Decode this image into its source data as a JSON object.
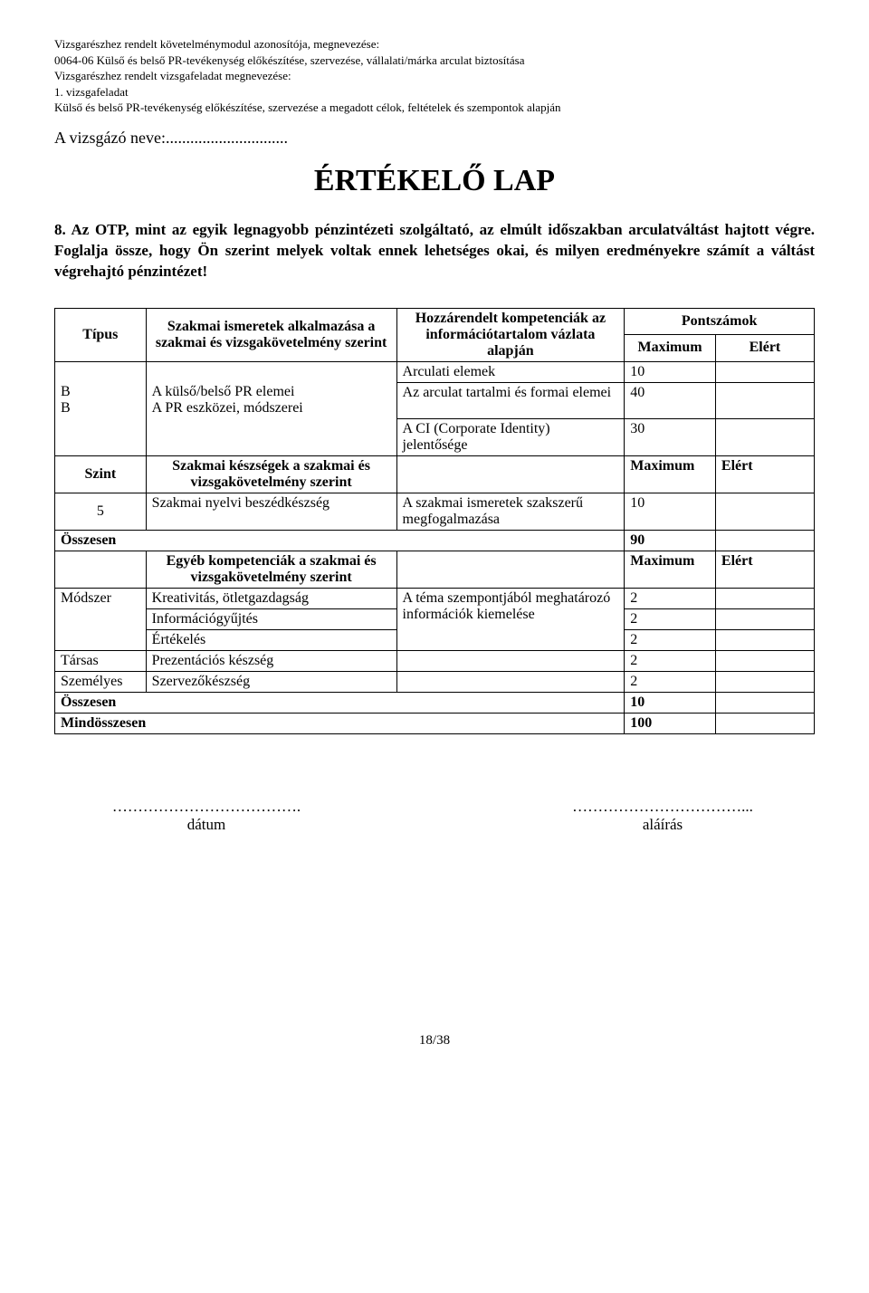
{
  "header": {
    "l1": "Vizsgarészhez rendelt követelménymodul azonosítója, megnevezése:",
    "l2": "0064-06 Külső és belső PR-tevékenység előkészítése, szervezése, vállalati/márka arculat biztosítása",
    "l3": "Vizsgarészhez rendelt vizsgafeladat megnevezése:",
    "l4": "1. vizsgafeladat",
    "l5": "Külső és belső PR-tevékenység előkészítése, szervezése a megadott célok, feltételek és szempontok alapján"
  },
  "candidate_label": "A vizsgázó neve:",
  "candidate_dots": "..............................",
  "title": "ÉRTÉKELŐ LAP",
  "question": "8. Az OTP, mint az egyik legnagyobb pénzintézeti szolgáltató, az elmúlt időszakban arculatváltást hajtott végre. Foglalja össze, hogy Ön szerint melyek voltak ennek lehetséges okai, és milyen eredményekre számít a váltást végrehajtó pénzintézet!",
  "table": {
    "h_type": "Típus",
    "h_know": "Szakmai ismeretek alkalmazása a szakmai és vizsgakövetelmény szerint",
    "h_comp": "Hozzárendelt kompetenciák az információtartalom vázlata alapján",
    "h_points": "Pontszámok",
    "h_max": "Maximum",
    "h_score": "Elért",
    "r1_t": "B",
    "r1_d": "A külső/belső PR elemei",
    "r2_t": "B",
    "r2_d": "A PR eszközei, módszerei",
    "c1": "Arculati elemek",
    "c1_m": "10",
    "c2": "Az arculat tartalmi és formai elemei",
    "c2_m": "40",
    "c3": "A CI (Corporate Identity) jelentősége",
    "c3_m": "30",
    "h_level": "Szint",
    "h_skill": "Szakmai készségek a szakmai és vizsgakövetelmény szerint",
    "s1_t": "5",
    "s1_d": "Szakmai nyelvi beszédkészség",
    "s1_c": "A szakmai ismeretek szakszerű megfogalmazása",
    "s1_m": "10",
    "sum1": "Összesen",
    "sum1_m": "90",
    "h_other": "Egyéb kompetenciák a szakmai és vizsgakövetelmény szerint",
    "m_t": "Módszer",
    "m1_d": "Kreativitás, ötletgazdagság",
    "m1_m": "2",
    "m2_d": "Információgyűjtés",
    "m2_m": "2",
    "m3_d": "Értékelés",
    "m3_m": "2",
    "m_c": "A téma szempontjából meghatározó információk kiemelése",
    "t_t": "Társas",
    "t_d": "Prezentációs készség",
    "t_m": "2",
    "p_t": "Személyes",
    "p_d": "Szervezőkészség",
    "p_m": "2",
    "sum2": "Összesen",
    "sum2_m": "10",
    "total": "Mindösszesen",
    "total_m": "100"
  },
  "sig": {
    "dots_left": "……………………………….",
    "dots_right": "……………………………...",
    "date": "dátum",
    "sign": "aláírás"
  },
  "page": "18/38"
}
